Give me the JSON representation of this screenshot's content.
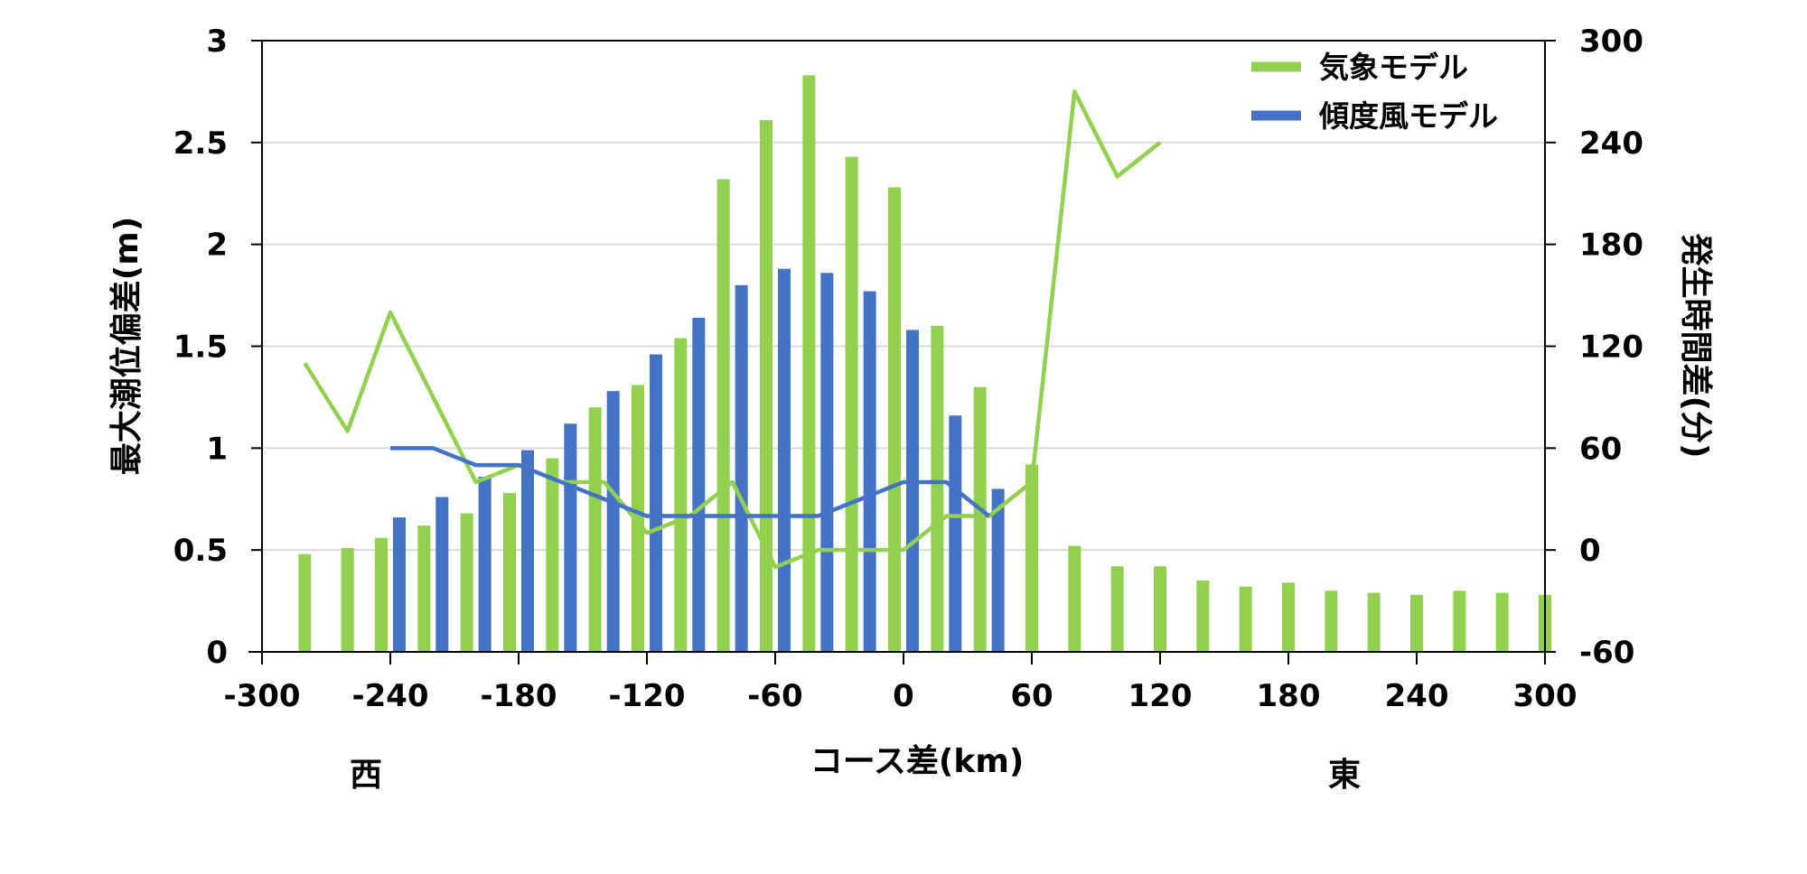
{
  "chart_data": {
    "type": "bar",
    "x_axis": {
      "label": "コース差(km)",
      "min": -300,
      "max": 300,
      "ticks": [
        -300,
        -240,
        -180,
        -120,
        -60,
        0,
        60,
        120,
        180,
        240,
        300
      ]
    },
    "y_left": {
      "label": "最大潮位偏差(m)",
      "min": 0,
      "max": 3,
      "ticks": [
        "0",
        "0.5",
        "1",
        "1.5",
        "2",
        "2.5",
        "3"
      ],
      "tick_values": [
        0,
        0.5,
        1,
        1.5,
        2,
        2.5,
        3
      ]
    },
    "y_right": {
      "label": "発生時間差(分)",
      "min": -60,
      "max": 300,
      "ticks": [
        -60,
        0,
        60,
        120,
        180,
        240,
        300
      ]
    },
    "grid": true,
    "direction_labels": {
      "west": "西",
      "east": "東"
    },
    "legend": {
      "position": "top-right",
      "entries": [
        "気象モデル",
        "傾度風モデル"
      ]
    },
    "series": [
      {
        "name": "気象モデル",
        "color": "#92d050",
        "bar_x": [
          -280,
          -260,
          -240,
          -220,
          -200,
          -180,
          -160,
          -140,
          -120,
          -100,
          -80,
          -60,
          -40,
          -20,
          0,
          20,
          40,
          60,
          80,
          100,
          120,
          140,
          160,
          180,
          200,
          220,
          240,
          260,
          280,
          300
        ],
        "bar_values": [
          0.48,
          0.51,
          0.56,
          0.62,
          0.68,
          0.78,
          0.95,
          1.2,
          1.31,
          1.54,
          2.32,
          2.61,
          2.83,
          2.43,
          2.28,
          1.6,
          1.3,
          0.92,
          0.52,
          0.42,
          0.42,
          0.35,
          0.32,
          0.34,
          0.3,
          0.29,
          0.28,
          0.3,
          0.29,
          0.28
        ],
        "line_x": [
          -280,
          -260,
          -240,
          -220,
          -200,
          -180,
          -160,
          -140,
          -120,
          -100,
          -80,
          -60,
          -40,
          -20,
          0,
          20,
          40,
          60,
          80,
          100,
          120
        ],
        "line_values": [
          110,
          70,
          140,
          90,
          40,
          50,
          40,
          40,
          10,
          20,
          40,
          -10,
          0,
          0,
          0,
          20,
          20,
          40,
          270,
          220,
          240
        ]
      },
      {
        "name": "傾度風モデル",
        "color": "#4472c4",
        "bar_x": [
          -240,
          -220,
          -200,
          -180,
          -160,
          -140,
          -120,
          -100,
          -80,
          -60,
          -40,
          -20,
          0,
          20,
          40
        ],
        "bar_values": [
          0.66,
          0.76,
          0.86,
          0.99,
          1.12,
          1.28,
          1.46,
          1.64,
          1.8,
          1.88,
          1.86,
          1.77,
          1.58,
          1.16,
          0.8
        ],
        "line_x": [
          -240,
          -220,
          -200,
          -180,
          -160,
          -140,
          -120,
          -100,
          -80,
          -60,
          -40,
          -20,
          0,
          20,
          40
        ],
        "line_values": [
          60,
          60,
          50,
          50,
          40,
          30,
          20,
          20,
          20,
          20,
          20,
          30,
          40,
          40,
          20
        ]
      }
    ]
  }
}
